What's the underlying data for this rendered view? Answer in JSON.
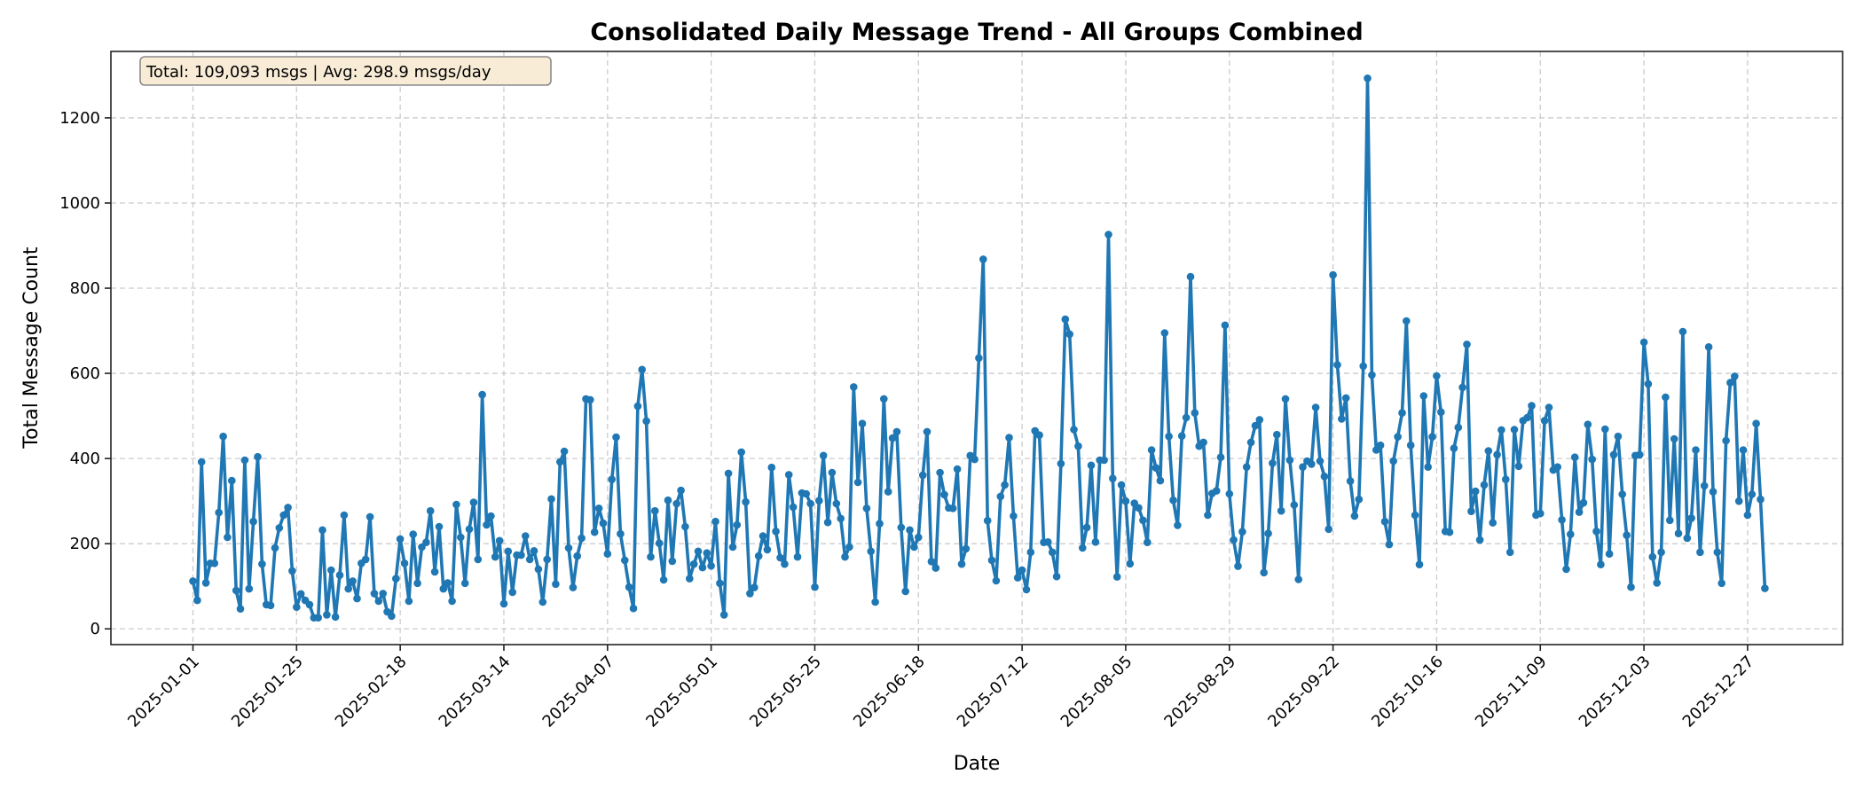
{
  "chart_data": {
    "type": "line",
    "title": "Consolidated Daily Message Trend - All Groups Combined",
    "xlabel": "Date",
    "ylabel": "Total Message Count",
    "annotation": "Total: 109,093 msgs | Avg: 298.9 msgs/day",
    "xlim": [
      "2024-12-13",
      "2026-01-18"
    ],
    "ylim": [
      -37,
      1356
    ],
    "x_ticks": [
      "2025-01-01",
      "2025-01-25",
      "2025-02-18",
      "2025-03-14",
      "2025-04-07",
      "2025-05-01",
      "2025-05-25",
      "2025-06-18",
      "2025-07-12",
      "2025-08-05",
      "2025-08-29",
      "2025-09-22",
      "2025-10-16",
      "2025-11-09",
      "2025-12-03",
      "2025-12-27"
    ],
    "y_ticks": [
      0,
      200,
      400,
      600,
      800,
      1000,
      1200
    ],
    "grid": true,
    "grid_style": "dashed",
    "marker": "circle",
    "colors": {
      "line": "#1f77b4",
      "grid": "#cccccc",
      "annotation_bg": "#f8ecd6",
      "annotation_border": "#8a8a8a"
    },
    "x": [
      "2025-01-01",
      "2025-01-02",
      "2025-01-03",
      "2025-01-04",
      "2025-01-05",
      "2025-01-06",
      "2025-01-07",
      "2025-01-08",
      "2025-01-09",
      "2025-01-10",
      "2025-01-11",
      "2025-01-12",
      "2025-01-13",
      "2025-01-14",
      "2025-01-15",
      "2025-01-16",
      "2025-01-17",
      "2025-01-18",
      "2025-01-19",
      "2025-01-20",
      "2025-01-21",
      "2025-01-22",
      "2025-01-23",
      "2025-01-24",
      "2025-01-25",
      "2025-01-26",
      "2025-01-27",
      "2025-01-28",
      "2025-01-29",
      "2025-01-30",
      "2025-01-31",
      "2025-02-01",
      "2025-02-02",
      "2025-02-03",
      "2025-02-04",
      "2025-02-05",
      "2025-02-06",
      "2025-02-07",
      "2025-02-08",
      "2025-02-09",
      "2025-02-10",
      "2025-02-11",
      "2025-02-12",
      "2025-02-13",
      "2025-02-14",
      "2025-02-15",
      "2025-02-16",
      "2025-02-17",
      "2025-02-18",
      "2025-02-19",
      "2025-02-20",
      "2025-02-21",
      "2025-02-22",
      "2025-02-23",
      "2025-02-24",
      "2025-02-25",
      "2025-02-26",
      "2025-02-27",
      "2025-02-28",
      "2025-03-01",
      "2025-03-02",
      "2025-03-03",
      "2025-03-04",
      "2025-03-05",
      "2025-03-06",
      "2025-03-07",
      "2025-03-08",
      "2025-03-09",
      "2025-03-10",
      "2025-03-11",
      "2025-03-12",
      "2025-03-13",
      "2025-03-14",
      "2025-03-15",
      "2025-03-16",
      "2025-03-17",
      "2025-03-18",
      "2025-03-19",
      "2025-03-20",
      "2025-03-21",
      "2025-03-22",
      "2025-03-23",
      "2025-03-24",
      "2025-03-25",
      "2025-03-26",
      "2025-03-27",
      "2025-03-28",
      "2025-03-29",
      "2025-03-30",
      "2025-03-31",
      "2025-04-01",
      "2025-04-02",
      "2025-04-03",
      "2025-04-04",
      "2025-04-05",
      "2025-04-06",
      "2025-04-07",
      "2025-04-08",
      "2025-04-09",
      "2025-04-10",
      "2025-04-11",
      "2025-04-12",
      "2025-04-13",
      "2025-04-14",
      "2025-04-15",
      "2025-04-16",
      "2025-04-17",
      "2025-04-18",
      "2025-04-19",
      "2025-04-20",
      "2025-04-21",
      "2025-04-22",
      "2025-04-23",
      "2025-04-24",
      "2025-04-25",
      "2025-04-26",
      "2025-04-27",
      "2025-04-28",
      "2025-04-29",
      "2025-04-30",
      "2025-05-01",
      "2025-05-02",
      "2025-05-03",
      "2025-05-04",
      "2025-05-05",
      "2025-05-06",
      "2025-05-07",
      "2025-05-08",
      "2025-05-09",
      "2025-05-10",
      "2025-05-11",
      "2025-05-12",
      "2025-05-13",
      "2025-05-14",
      "2025-05-15",
      "2025-05-16",
      "2025-05-17",
      "2025-05-18",
      "2025-05-19",
      "2025-05-20",
      "2025-05-21",
      "2025-05-22",
      "2025-05-23",
      "2025-05-24",
      "2025-05-25",
      "2025-05-26",
      "2025-05-27",
      "2025-05-28",
      "2025-05-29",
      "2025-05-30",
      "2025-05-31",
      "2025-06-01",
      "2025-06-02",
      "2025-06-03",
      "2025-06-04",
      "2025-06-05",
      "2025-06-06",
      "2025-06-07",
      "2025-06-08",
      "2025-06-09",
      "2025-06-10",
      "2025-06-11",
      "2025-06-12",
      "2025-06-13",
      "2025-06-14",
      "2025-06-15",
      "2025-06-16",
      "2025-06-17",
      "2025-06-18",
      "2025-06-19",
      "2025-06-20",
      "2025-06-21",
      "2025-06-22",
      "2025-06-23",
      "2025-06-24",
      "2025-06-25",
      "2025-06-26",
      "2025-06-27",
      "2025-06-28",
      "2025-06-29",
      "2025-06-30",
      "2025-07-01",
      "2025-07-02",
      "2025-07-03",
      "2025-07-04",
      "2025-07-05",
      "2025-07-06",
      "2025-07-07",
      "2025-07-08",
      "2025-07-09",
      "2025-07-10",
      "2025-07-11",
      "2025-07-12",
      "2025-07-13",
      "2025-07-14",
      "2025-07-15",
      "2025-07-16",
      "2025-07-17",
      "2025-07-18",
      "2025-07-19",
      "2025-07-20",
      "2025-07-21",
      "2025-07-22",
      "2025-07-23",
      "2025-07-24",
      "2025-07-25",
      "2025-07-26",
      "2025-07-27",
      "2025-07-28",
      "2025-07-29",
      "2025-07-30",
      "2025-07-31",
      "2025-08-01",
      "2025-08-02",
      "2025-08-03",
      "2025-08-04",
      "2025-08-05",
      "2025-08-06",
      "2025-08-07",
      "2025-08-08",
      "2025-08-09",
      "2025-08-10",
      "2025-08-11",
      "2025-08-12",
      "2025-08-13",
      "2025-08-14",
      "2025-08-15",
      "2025-08-16",
      "2025-08-17",
      "2025-08-18",
      "2025-08-19",
      "2025-08-20",
      "2025-08-21",
      "2025-08-22",
      "2025-08-23",
      "2025-08-24",
      "2025-08-25",
      "2025-08-26",
      "2025-08-27",
      "2025-08-28",
      "2025-08-29",
      "2025-08-30",
      "2025-08-31",
      "2025-09-01",
      "2025-09-02",
      "2025-09-03",
      "2025-09-04",
      "2025-09-05",
      "2025-09-06",
      "2025-09-07",
      "2025-09-08",
      "2025-09-09",
      "2025-09-10",
      "2025-09-11",
      "2025-09-12",
      "2025-09-13",
      "2025-09-14",
      "2025-09-15",
      "2025-09-16",
      "2025-09-17",
      "2025-09-18",
      "2025-09-19",
      "2025-09-20",
      "2025-09-21",
      "2025-09-22",
      "2025-09-23",
      "2025-09-24",
      "2025-09-25",
      "2025-09-26",
      "2025-09-27",
      "2025-09-28",
      "2025-09-29",
      "2025-09-30",
      "2025-10-01",
      "2025-10-02",
      "2025-10-03",
      "2025-10-04",
      "2025-10-05",
      "2025-10-06",
      "2025-10-07",
      "2025-10-08",
      "2025-10-09",
      "2025-10-10",
      "2025-10-11",
      "2025-10-12",
      "2025-10-13",
      "2025-10-14",
      "2025-10-15",
      "2025-10-16",
      "2025-10-17",
      "2025-10-18",
      "2025-10-19",
      "2025-10-20",
      "2025-10-21",
      "2025-10-22",
      "2025-10-23",
      "2025-10-24",
      "2025-10-25",
      "2025-10-26",
      "2025-10-27",
      "2025-10-28",
      "2025-10-29",
      "2025-10-30",
      "2025-10-31",
      "2025-11-01",
      "2025-11-02",
      "2025-11-03",
      "2025-11-04",
      "2025-11-05",
      "2025-11-06",
      "2025-11-07",
      "2025-11-08",
      "2025-11-09",
      "2025-11-10",
      "2025-11-11",
      "2025-11-12",
      "2025-11-13",
      "2025-11-14",
      "2025-11-15",
      "2025-11-16",
      "2025-11-17",
      "2025-11-18",
      "2025-11-19",
      "2025-11-20",
      "2025-11-21",
      "2025-11-22",
      "2025-11-23",
      "2025-11-24",
      "2025-11-25",
      "2025-11-26",
      "2025-11-27",
      "2025-11-28",
      "2025-11-29",
      "2025-11-30",
      "2025-12-01",
      "2025-12-02",
      "2025-12-03",
      "2025-12-04",
      "2025-12-05",
      "2025-12-06",
      "2025-12-07",
      "2025-12-08",
      "2025-12-09",
      "2025-12-10",
      "2025-12-11",
      "2025-12-12",
      "2025-12-13",
      "2025-12-14",
      "2025-12-15",
      "2025-12-16",
      "2025-12-17",
      "2025-12-18",
      "2025-12-19",
      "2025-12-20",
      "2025-12-21",
      "2025-12-22",
      "2025-12-23",
      "2025-12-24",
      "2025-12-25",
      "2025-12-26",
      "2025-12-27",
      "2025-12-28",
      "2025-12-29",
      "2025-12-30",
      "2025-12-31"
    ],
    "values": [
      112,
      67,
      392,
      108,
      154,
      154,
      273,
      452,
      215,
      348,
      90,
      47,
      396,
      94,
      252,
      404,
      152,
      57,
      55,
      190,
      237,
      267,
      285,
      136,
      51,
      82,
      67,
      57,
      26,
      26,
      232,
      33,
      138,
      28,
      126,
      267,
      94,
      112,
      71,
      154,
      163,
      263,
      83,
      65,
      83,
      40,
      30,
      118,
      211,
      154,
      65,
      222,
      107,
      192,
      203,
      277,
      134,
      240,
      94,
      108,
      65,
      292,
      215,
      107,
      234,
      297,
      163,
      550,
      244,
      265,
      169,
      207,
      59,
      182,
      86,
      173,
      173,
      218,
      163,
      183,
      140,
      63,
      163,
      305,
      105,
      392,
      417,
      190,
      97,
      171,
      213,
      540,
      538,
      227,
      283,
      248,
      176,
      351,
      450,
      223,
      161,
      98,
      48,
      523,
      609,
      488,
      169,
      277,
      201,
      115,
      302,
      159,
      294,
      325,
      240,
      118,
      152,
      182,
      144,
      178,
      148,
      252,
      107,
      33,
      365,
      192,
      244,
      415,
      298,
      83,
      97,
      171,
      218,
      186,
      379,
      229,
      167,
      152,
      362,
      286,
      169,
      319,
      317,
      294,
      98,
      301,
      407,
      250,
      367,
      294,
      259,
      169,
      192,
      568,
      344,
      482,
      283,
      182,
      63,
      247,
      540,
      322,
      448,
      463,
      238,
      88,
      232,
      192,
      215,
      361,
      463,
      158,
      143,
      367,
      315,
      284,
      283,
      375,
      152,
      188,
      407,
      398,
      636,
      868,
      254,
      161,
      113,
      311,
      338,
      449,
      265,
      120,
      138,
      92,
      180,
      465,
      455,
      203,
      204,
      180,
      123,
      388,
      727,
      692,
      468,
      429,
      190,
      238,
      384,
      204,
      396,
      396,
      926,
      353,
      122,
      338,
      300,
      153,
      295,
      284,
      255,
      203,
      420,
      378,
      348,
      695,
      452,
      302,
      243,
      453,
      496,
      827,
      507,
      429,
      438,
      267,
      318,
      324,
      403,
      713,
      317,
      209,
      147,
      228,
      380,
      438,
      477,
      491,
      132,
      224,
      389,
      456,
      277,
      540,
      396,
      291,
      116,
      380,
      394,
      387,
      520,
      394,
      358,
      234,
      831,
      620,
      493,
      542,
      347,
      265,
      304,
      617,
      1293,
      596,
      420,
      431,
      252,
      198,
      394,
      451,
      507,
      723,
      431,
      267,
      151,
      547,
      380,
      451,
      594,
      509,
      229,
      227,
      424,
      473,
      567,
      668,
      276,
      323,
      209,
      338,
      418,
      249,
      409,
      467,
      351,
      180,
      468,
      382,
      489,
      496,
      524,
      267,
      271,
      489,
      520,
      373,
      380,
      256,
      140,
      222,
      403,
      274,
      296,
      480,
      398,
      229,
      151,
      469,
      176,
      409,
      452,
      316,
      220,
      98,
      407,
      409,
      673,
      575,
      169,
      108,
      180,
      544,
      255,
      446,
      224,
      698,
      213,
      260,
      420,
      180,
      336,
      662,
      322,
      180,
      107,
      442,
      578,
      593,
      300,
      420,
      267,
      316,
      482,
      304,
      95
    ]
  }
}
